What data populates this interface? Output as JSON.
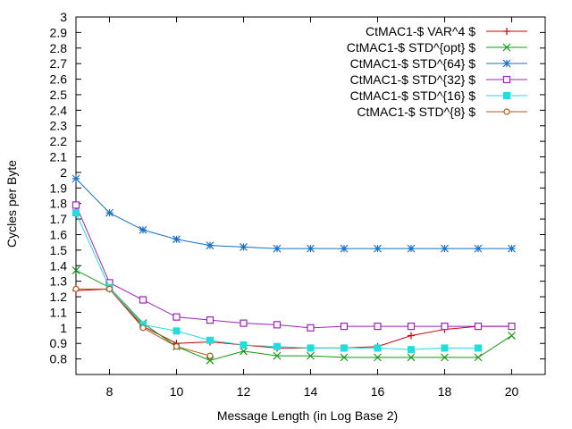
{
  "chart_data": {
    "type": "line",
    "xlabel": "Message Length (in Log Base 2)",
    "ylabel": "Cycles per Byte",
    "xlim": [
      7,
      21
    ],
    "ylim": [
      0.7,
      3.0
    ],
    "x_ticks": [
      8,
      10,
      12,
      14,
      16,
      18,
      20
    ],
    "y_ticks": [
      0.8,
      0.9,
      1,
      1.1,
      1.2,
      1.3,
      1.4,
      1.5,
      1.6,
      1.7,
      1.8,
      1.9,
      2,
      2.1,
      2.2,
      2.3,
      2.4,
      2.5,
      2.6,
      2.7,
      2.8,
      2.9,
      3
    ],
    "y_tick_labels": [
      "0.8",
      "0.9",
      "1",
      "1.1",
      "1.2",
      "1.3",
      "1.4",
      "1.5",
      "1.6",
      "1.7",
      "1.8",
      "1.9",
      "2",
      "2.1",
      "2.2",
      "2.3",
      "2.4",
      "2.5",
      "2.6",
      "2.7",
      "2.8",
      "2.9",
      "3"
    ],
    "legend_position": "top-right",
    "grid": false,
    "series": [
      {
        "name": "CtMAC1-$ VAR^4 $",
        "color": "#cc0000",
        "marker": "plus",
        "x": [
          7,
          8,
          9,
          10,
          11,
          12,
          13,
          14,
          15,
          16,
          17,
          18,
          19,
          20
        ],
        "y": [
          1.24,
          1.25,
          1.01,
          0.9,
          0.91,
          0.89,
          0.87,
          0.87,
          0.87,
          0.88,
          0.95,
          0.99,
          1.01,
          1.01
        ]
      },
      {
        "name": "CtMAC1-$ STD^{opt} $",
        "color": "#119911",
        "marker": "x",
        "x": [
          7,
          8,
          9,
          10,
          11,
          12,
          13,
          14,
          15,
          16,
          17,
          18,
          19,
          20
        ],
        "y": [
          1.37,
          1.26,
          1.03,
          0.88,
          0.79,
          0.85,
          0.82,
          0.82,
          0.81,
          0.81,
          0.81,
          0.81,
          0.81,
          0.95
        ]
      },
      {
        "name": "CtMAC1-$ STD^{64} $",
        "color": "#1a6fc6",
        "marker": "star",
        "x": [
          7,
          8,
          9,
          10,
          11,
          12,
          13,
          14,
          15,
          16,
          17,
          18,
          19,
          20
        ],
        "y": [
          1.96,
          1.74,
          1.63,
          1.57,
          1.53,
          1.52,
          1.51,
          1.51,
          1.51,
          1.51,
          1.51,
          1.51,
          1.51,
          1.51
        ]
      },
      {
        "name": "CtMAC1-$ STD^{32} $",
        "color": "#a020c0",
        "marker": "square-open",
        "x": [
          7,
          8,
          9,
          10,
          11,
          12,
          13,
          14,
          15,
          16,
          17,
          18,
          19,
          20
        ],
        "y": [
          1.79,
          1.29,
          1.18,
          1.07,
          1.05,
          1.03,
          1.02,
          1.0,
          1.01,
          1.01,
          1.01,
          1.01,
          1.01,
          1.01
        ]
      },
      {
        "name": "CtMAC1-$ STD^{16} $",
        "color": "#22dddd",
        "marker": "square-filled",
        "x": [
          7,
          8,
          9,
          10,
          11,
          12,
          13,
          14,
          15,
          16,
          17,
          18,
          19
        ],
        "y": [
          1.74,
          1.26,
          1.02,
          0.98,
          0.92,
          0.89,
          0.88,
          0.87,
          0.87,
          0.87,
          0.86,
          0.87,
          0.87
        ]
      },
      {
        "name": "CtMAC1-$ STD^{8} $",
        "color": "#b05820",
        "marker": "circle-open",
        "x": [
          7,
          8,
          9,
          10,
          11
        ],
        "y": [
          1.25,
          1.25,
          1.0,
          0.88,
          0.82
        ]
      }
    ]
  }
}
